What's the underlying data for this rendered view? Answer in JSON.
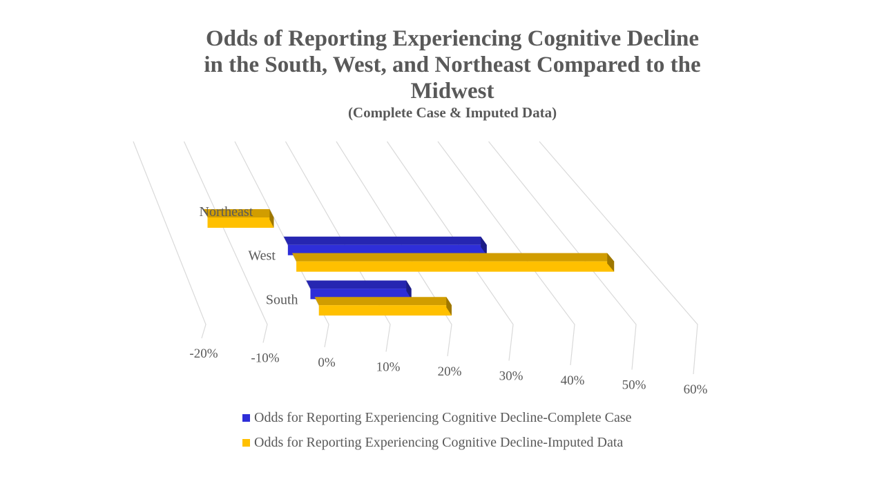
{
  "chart_data": {
    "type": "bar",
    "orientation": "horizontal",
    "style": "3d-perspective",
    "title_lines": [
      "Odds of Reporting Experiencing Cognitive Decline",
      "in the South, West, and Northeast Compared to the",
      "Midwest"
    ],
    "subtitle": "(Complete Case & Imputed Data)",
    "categories": [
      "South",
      "West",
      "Northeast"
    ],
    "series": [
      {
        "name": "Odds for Reporting Experiencing Cognitive Decline-Complete Case",
        "color": "#2E2ED8",
        "values": [
          17,
          35,
          null
        ]
      },
      {
        "name": "Odds for Reporting Experiencing Cognitive Decline-Imputed Data",
        "color": "#FFC000",
        "values": [
          22,
          55,
          -12
        ]
      }
    ],
    "x_ticks": [
      -20,
      -10,
      0,
      10,
      20,
      30,
      40,
      50,
      60
    ],
    "x_tick_labels": [
      "-20%",
      "-10%",
      "0%",
      "10%",
      "20%",
      "30%",
      "40%",
      "50%",
      "60%"
    ],
    "xlim": [
      -20,
      60
    ],
    "xlabel": "",
    "ylabel": "",
    "grid": true,
    "legend_position": "bottom"
  }
}
